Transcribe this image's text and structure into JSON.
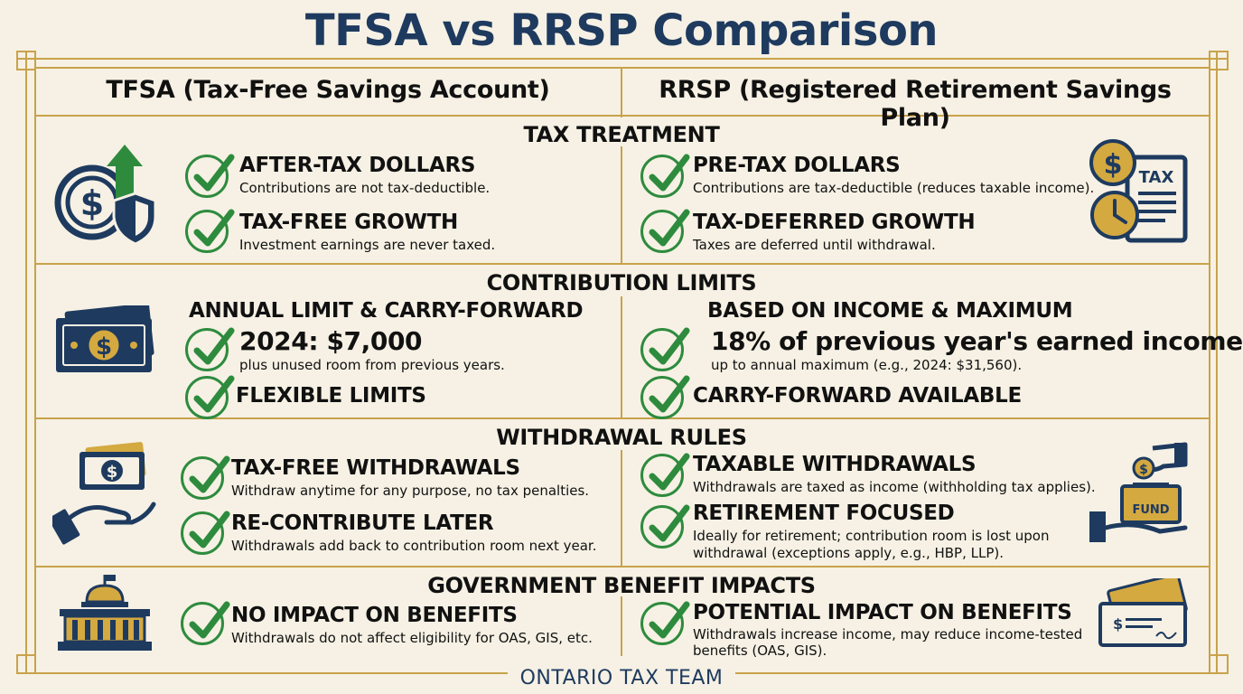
{
  "title": "TFSA vs RRSP Comparison",
  "columns": {
    "left": "TFSA (Tax-Free Savings Account)",
    "right": "RRSP (Registered Retirement Savings Plan)"
  },
  "sections": {
    "tax": {
      "heading": "TAX TREATMENT",
      "left": [
        {
          "title": "AFTER-TAX DOLLARS",
          "desc": "Contributions are not tax-deductible."
        },
        {
          "title": "TAX-FREE GROWTH",
          "desc": "Investment earnings are never taxed."
        }
      ],
      "right": [
        {
          "title": "PRE-TAX DOLLARS",
          "desc": "Contributions are tax-deductible (reduces taxable income)."
        },
        {
          "title": "TAX-DEFERRED GROWTH",
          "desc": "Taxes are deferred until withdrawal."
        }
      ],
      "right_icon_text": "TAX"
    },
    "limits": {
      "heading": "CONTRIBUTION LIMITS",
      "left_sub": "ANNUAL LIMIT & CARRY-FORWARD",
      "left": [
        {
          "title": "2024: $7,000",
          "desc": "plus unused room from previous years."
        },
        {
          "title": "FLEXIBLE LIMITS"
        }
      ],
      "right_sub": "BASED ON INCOME & MAXIMUM",
      "right": [
        {
          "title": "18% of previous year's earned income",
          "desc": "up to annual maximum (e.g., 2024: $31,560)."
        },
        {
          "title": "CARRY-FORWARD AVAILABLE"
        }
      ]
    },
    "withdrawal": {
      "heading": "WITHDRAWAL RULES",
      "left": [
        {
          "title": "TAX-FREE WITHDRAWALS",
          "desc": "Withdraw anytime for any purpose, no tax penalties."
        },
        {
          "title": "RE-CONTRIBUTE LATER",
          "desc": "Withdrawals add back to contribution room next year."
        }
      ],
      "right": [
        {
          "title": "TAXABLE WITHDRAWALS",
          "desc": "Withdrawals are taxed as income (withholding tax applies)."
        },
        {
          "title": "RETIREMENT FOCUSED",
          "desc1": "Ideally for retirement; contribution room is lost upon",
          "desc2": "withdrawal (exceptions apply, e.g., HBP, LLP)."
        }
      ],
      "right_icon_text": "FUND"
    },
    "benefits": {
      "heading": "GOVERNMENT BENEFIT IMPACTS",
      "left": [
        {
          "title": "NO IMPACT ON BENEFITS",
          "desc": "Withdrawals do not affect eligibility for OAS, GIS, etc."
        }
      ],
      "right": [
        {
          "title": "POTENTIAL IMPACT ON BENEFITS",
          "desc1": "Withdrawals increase income, may reduce income-tested",
          "desc2": "benefits (OAS, GIS)."
        }
      ]
    }
  },
  "footer": "ONTARIO TAX TEAM",
  "colors": {
    "navy": "#1e3a5f",
    "gold": "#c9a24b",
    "green": "#2e8b3e",
    "background": "#f6f1e4"
  }
}
